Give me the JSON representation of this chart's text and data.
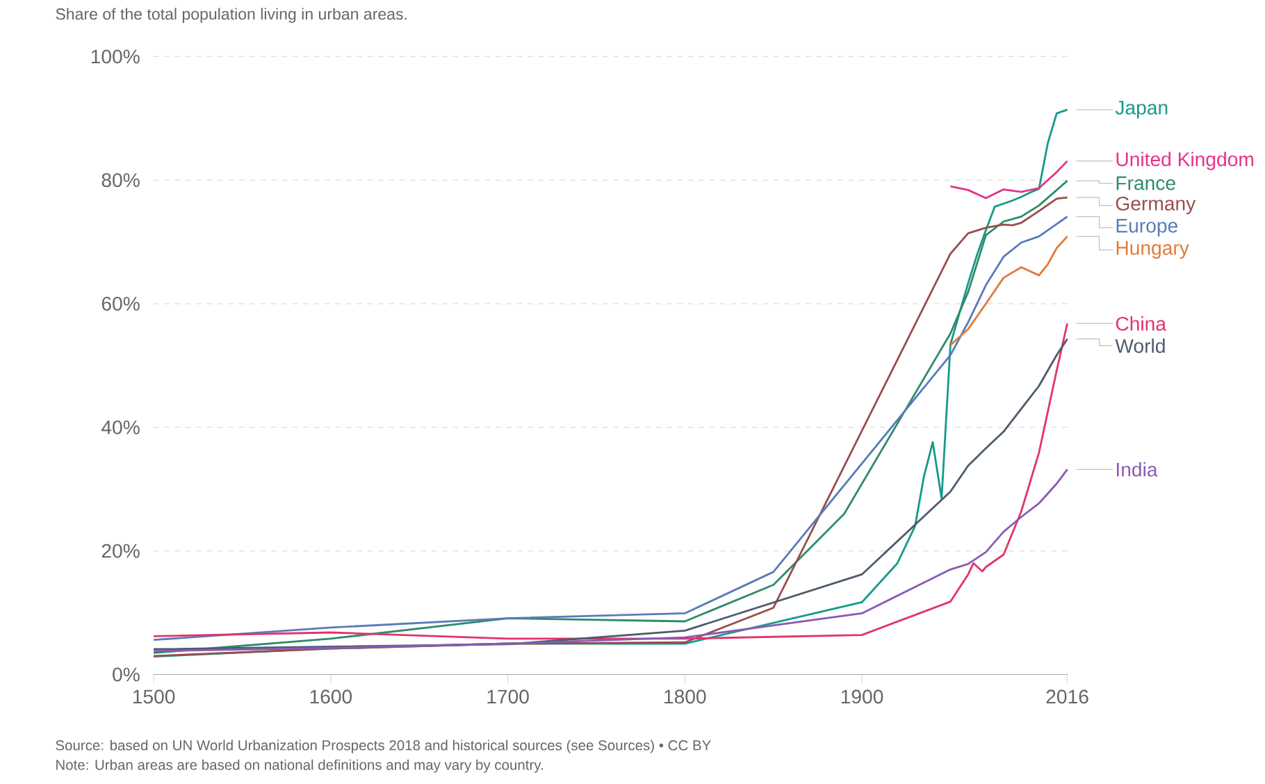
{
  "chart_data": {
    "type": "line",
    "subtitle": "Share of the total population living in urban areas.",
    "xlim": [
      1500,
      2016
    ],
    "ylim": [
      0,
      100
    ],
    "xticks": [
      1500,
      1600,
      1700,
      1800,
      1900,
      2016
    ],
    "yticks": [
      {
        "value": 0,
        "label": "0%"
      },
      {
        "value": 20,
        "label": "20%"
      },
      {
        "value": 40,
        "label": "40%"
      },
      {
        "value": 60,
        "label": "60%"
      },
      {
        "value": 80,
        "label": "80%"
      },
      {
        "value": 100,
        "label": "100%"
      }
    ],
    "grid": "y",
    "marker": "none",
    "line_style": "solid",
    "annotations": [
      "Source: based on UN World Urbanization Prospects 2018 and historical sources (see Sources) • CC BY",
      "Note: Urban areas are based on national definitions and may vary by country."
    ],
    "series": [
      {
        "name": "Japan",
        "color": "#17998a",
        "x": [
          1500,
          1600,
          1700,
          1800,
          1900,
          1920,
          1930,
          1935,
          1940,
          1945,
          1950,
          1955,
          1960,
          1965,
          1970,
          1975,
          1980,
          1985,
          1990,
          1995,
          2000,
          2005,
          2010,
          2016
        ],
        "values": [
          2.9,
          4.2,
          5.0,
          5.0,
          11.7,
          18,
          24,
          32,
          37.6,
          28.5,
          53.4,
          58.4,
          63.3,
          67.9,
          71.9,
          75.7,
          76.2,
          76.7,
          77.3,
          78.0,
          78.6,
          86.0,
          90.8,
          91.4
        ]
      },
      {
        "name": "United Kingdom",
        "color": "#e6338a",
        "x": [
          1950,
          1960,
          1970,
          1980,
          1990,
          2000,
          2010,
          2016
        ],
        "values": [
          79.0,
          78.4,
          77.1,
          78.5,
          78.1,
          78.7,
          81.3,
          83.1
        ]
      },
      {
        "name": "France",
        "color": "#2e8b6b",
        "x": [
          1500,
          1600,
          1700,
          1800,
          1850,
          1890,
          1950,
          1960,
          1970,
          1980,
          1990,
          2000,
          2010,
          2016
        ],
        "values": [
          3.5,
          5.8,
          9.1,
          8.6,
          14.5,
          26,
          55.2,
          61.9,
          71.1,
          73.3,
          74.1,
          75.9,
          78.4,
          79.9
        ]
      },
      {
        "name": "Germany",
        "color": "#994d4d",
        "x": [
          1500,
          1600,
          1700,
          1800,
          1850,
          1950,
          1960,
          1970,
          1980,
          1985,
          1990,
          2000,
          2010,
          2016
        ],
        "values": [
          3.0,
          4.2,
          5.0,
          5.2,
          10.8,
          68.1,
          71.4,
          72.3,
          72.8,
          72.7,
          73.1,
          75.0,
          77.0,
          77.2
        ]
      },
      {
        "name": "Europe",
        "color": "#5a7bb8",
        "x": [
          1500,
          1600,
          1700,
          1800,
          1850,
          1950,
          1960,
          1970,
          1980,
          1990,
          2000,
          2010,
          2016
        ],
        "values": [
          5.6,
          7.6,
          9.1,
          9.9,
          16.6,
          51.7,
          57.0,
          63.0,
          67.6,
          69.9,
          70.9,
          72.9,
          74.1
        ]
      },
      {
        "name": "Hungary",
        "color": "#e07b39",
        "x": [
          1950,
          1960,
          1970,
          1980,
          1990,
          2000,
          2005,
          2010,
          2016
        ],
        "values": [
          53.3,
          55.9,
          60.0,
          64.2,
          65.9,
          64.6,
          66.4,
          69.0,
          70.9
        ]
      },
      {
        "name": "China",
        "color": "#e2336c",
        "x": [
          1500,
          1600,
          1700,
          1800,
          1900,
          1950,
          1960,
          1963,
          1968,
          1970,
          1980,
          1990,
          2000,
          2010,
          2016
        ],
        "values": [
          6.2,
          6.8,
          5.8,
          5.8,
          6.4,
          11.8,
          16.2,
          18.0,
          16.7,
          17.4,
          19.4,
          26.4,
          35.9,
          49.2,
          56.8
        ]
      },
      {
        "name": "World",
        "color": "#4d5b6e",
        "x": [
          1500,
          1600,
          1700,
          1800,
          1900,
          1950,
          1960,
          1970,
          1980,
          1990,
          2000,
          2010,
          2016
        ],
        "values": [
          4.1,
          4.5,
          4.9,
          7.1,
          16.2,
          29.6,
          33.8,
          36.6,
          39.3,
          43.0,
          46.7,
          51.7,
          54.3
        ]
      },
      {
        "name": "India",
        "color": "#8a5ab5",
        "x": [
          1500,
          1600,
          1700,
          1800,
          1900,
          1950,
          1960,
          1970,
          1980,
          1990,
          2000,
          2010,
          2016
        ],
        "values": [
          3.8,
          4.3,
          5.0,
          6.0,
          9.9,
          17.0,
          17.9,
          19.8,
          23.1,
          25.5,
          27.7,
          30.9,
          33.2
        ]
      }
    ]
  }
}
